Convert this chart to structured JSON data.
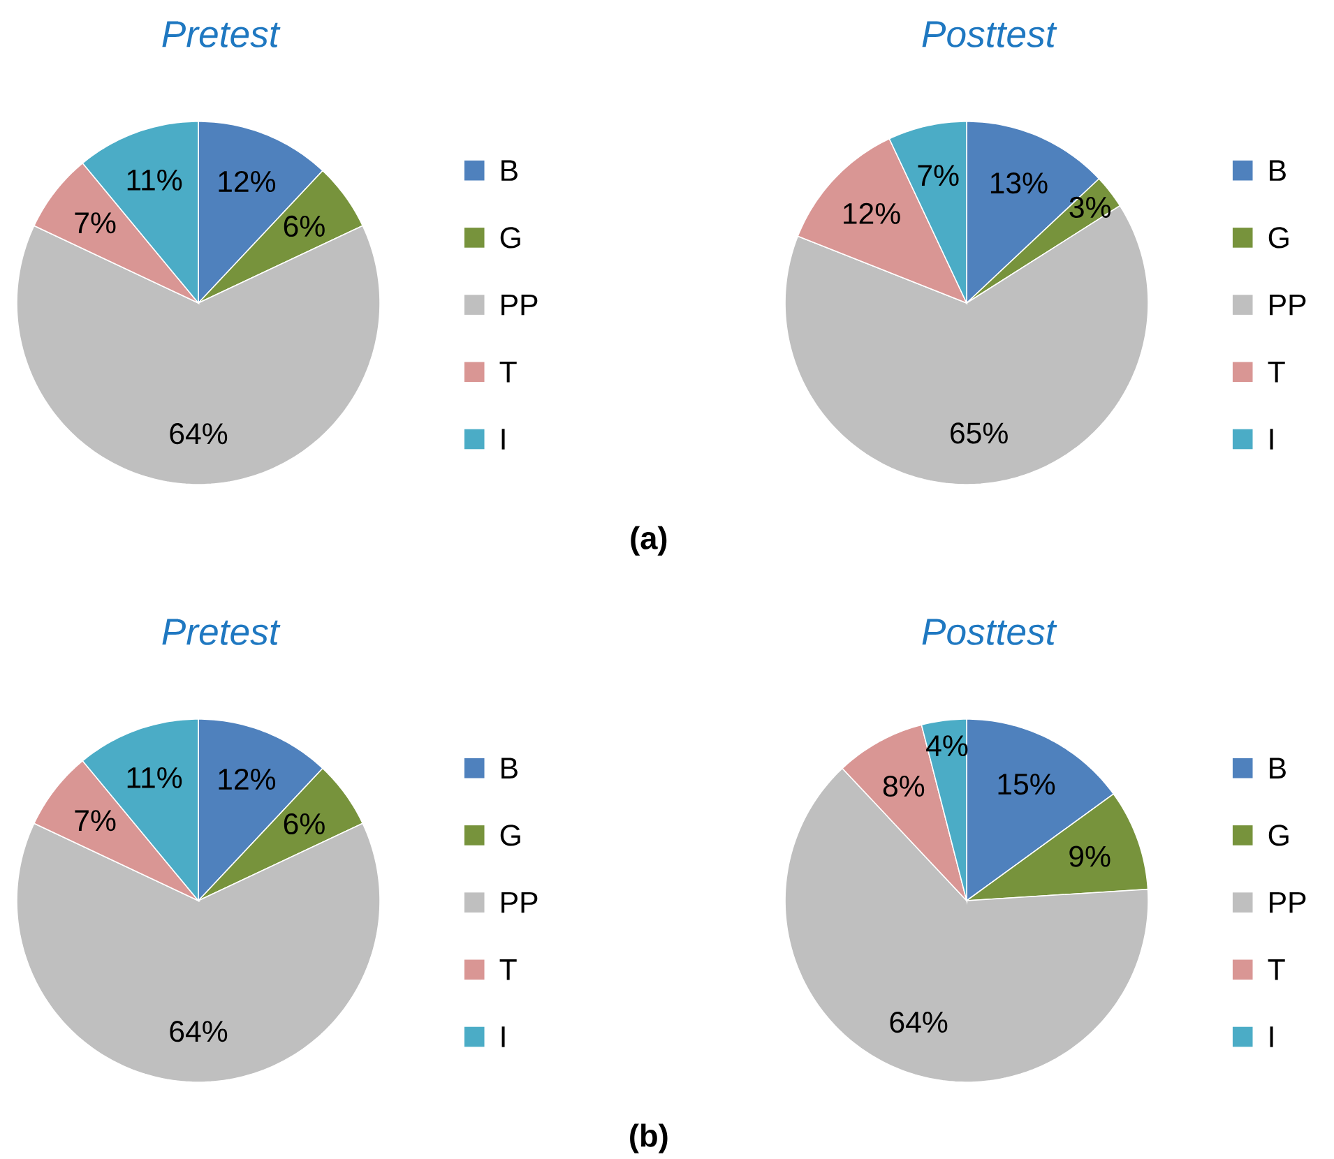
{
  "chart_data": [
    {
      "type": "pie",
      "title": "Pretest",
      "categories": [
        "B",
        "G",
        "PP",
        "T",
        "I"
      ],
      "values": [
        12,
        6,
        64,
        7,
        11
      ],
      "value_labels": [
        "12%",
        "6%",
        "64%",
        "7%",
        "11%"
      ],
      "colors": [
        "#4f81bd",
        "#77933c",
        "#bfbfbf",
        "#d99694",
        "#4bacc6"
      ],
      "legend": "right",
      "annotations": [
        "(a)"
      ]
    },
    {
      "type": "pie",
      "title": "Posttest",
      "categories": [
        "B",
        "G",
        "PP",
        "T",
        "I"
      ],
      "values": [
        13,
        3,
        65,
        12,
        7
      ],
      "value_labels": [
        "13%",
        "3%",
        "65%",
        "12%",
        "7%"
      ],
      "colors": [
        "#4f81bd",
        "#77933c",
        "#bfbfbf",
        "#d99694",
        "#4bacc6"
      ],
      "legend": "right"
    },
    {
      "type": "pie",
      "title": "Pretest",
      "categories": [
        "B",
        "G",
        "PP",
        "T",
        "I"
      ],
      "values": [
        12,
        6,
        64,
        7,
        11
      ],
      "value_labels": [
        "12%",
        "6%",
        "64%",
        "7%",
        "11%"
      ],
      "colors": [
        "#4f81bd",
        "#77933c",
        "#bfbfbf",
        "#d99694",
        "#4bacc6"
      ],
      "legend": "right",
      "annotations": [
        "(b)"
      ]
    },
    {
      "type": "pie",
      "title": "Posttest",
      "categories": [
        "B",
        "G",
        "PP",
        "T",
        "I"
      ],
      "values": [
        15,
        9,
        64,
        8,
        4
      ],
      "value_labels": [
        "15%",
        "9%",
        "64%",
        "8%",
        "4%"
      ],
      "colors": [
        "#4f81bd",
        "#77933c",
        "#bfbfbf",
        "#d99694",
        "#4bacc6"
      ],
      "legend": "right"
    }
  ]
}
